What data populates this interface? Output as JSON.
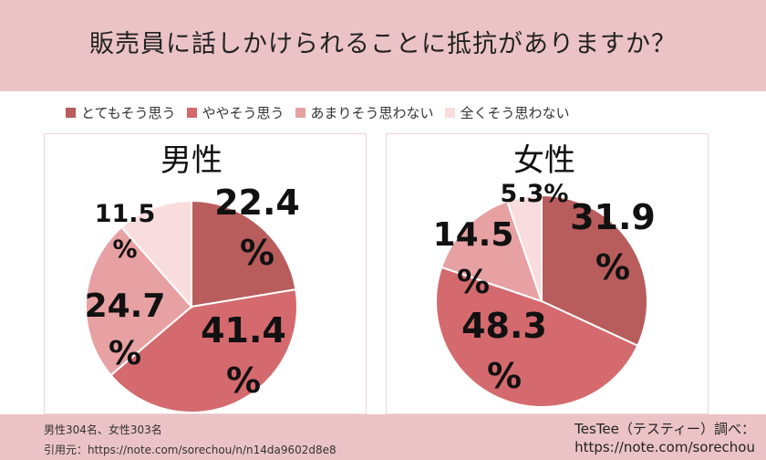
{
  "title": "販売員に話しかけられることに抵抗がありますか？",
  "legend": [
    {
      "label": "とてもそう思う",
      "color": "#b85c5c"
    },
    {
      "label": "ややそう思う",
      "color": "#d46a6e"
    },
    {
      "label": "あまりそう思わない",
      "color": "#e7a1a3"
    },
    {
      "label": "全くそう思わない",
      "color": "#f9dcdd"
    }
  ],
  "chart_data": [
    {
      "type": "pie",
      "title": "男性",
      "categories": [
        "とてもそう思う",
        "ややそう思う",
        "あまりそう思わない",
        "全くそう思わない"
      ],
      "values": [
        22.4,
        41.4,
        24.7,
        11.5
      ],
      "labels": [
        [
          "22.4",
          "%"
        ],
        [
          "41.4",
          "%"
        ],
        [
          "24.7",
          "%"
        ],
        [
          "11.5",
          "%"
        ]
      ],
      "colors": [
        "#b85c5c",
        "#d46a6e",
        "#e7a1a3",
        "#f9dcdd"
      ]
    },
    {
      "type": "pie",
      "title": "女性",
      "categories": [
        "とてもそう思う",
        "ややそう思う",
        "あまりそう思わない",
        "全くそう思わない"
      ],
      "values": [
        31.9,
        48.3,
        14.5,
        5.3
      ],
      "labels": [
        [
          "31.9",
          "%"
        ],
        [
          "48.3",
          "%"
        ],
        [
          "14.5",
          "%"
        ],
        [
          "5.3%"
        ]
      ],
      "colors": [
        "#b85c5c",
        "#d46a6e",
        "#e7a1a3",
        "#f9dcdd"
      ]
    }
  ],
  "footer": {
    "sample": "男性304名、女性303名",
    "citation": "引用元：https://note.com/sorechou/n/n14da9602d8e8",
    "credit_line1": "TesTee（テスティー）調べ：",
    "credit_line2": "https://note.com/sorechou"
  }
}
